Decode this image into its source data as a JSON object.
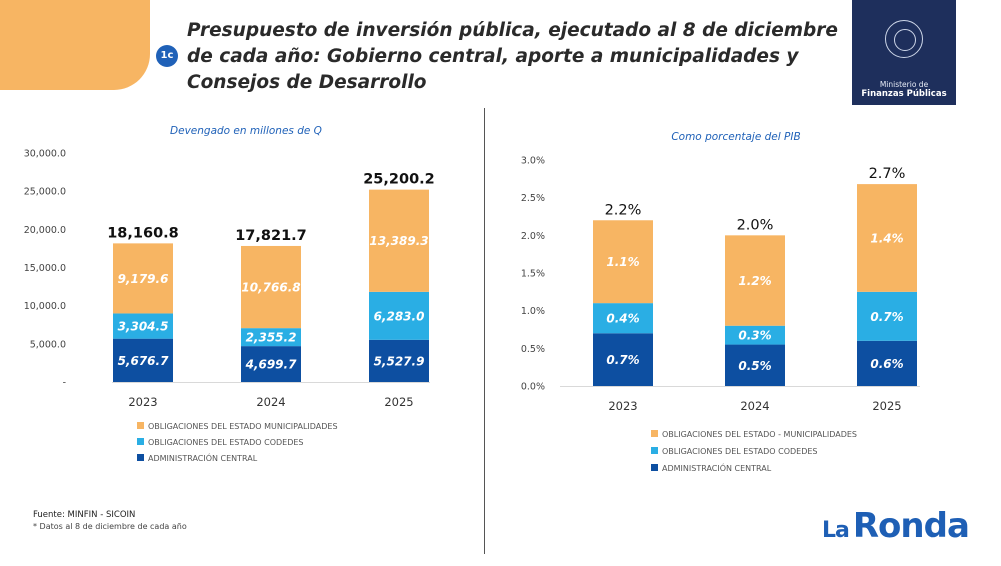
{
  "header": {
    "badge": "1c",
    "title": "Presupuesto de inversión pública, ejecutado al 8 de diciembre de cada año: Gobierno central, aporte a municipalidades y Consejos de Desarrollo"
  },
  "logo": {
    "line1": "Ministerio de",
    "line2": "Finanzas Públicas"
  },
  "footer": {
    "source": "Fuente: MINFIN - SICOIN",
    "note": "* Datos al 8 de diciembre de cada año",
    "brand_prefix": "La",
    "brand_name": "Ronda"
  },
  "colors": {
    "municipalidades": "#f7b563",
    "codedes": "#2aaee4",
    "central": "#0d4fa1",
    "corner": "#f7b563"
  },
  "chart_data": [
    {
      "type": "bar",
      "stacked": true,
      "title": "Devengado en millones de Q",
      "categories": [
        "2023",
        "2024",
        "2025"
      ],
      "ylim": [
        0,
        30000
      ],
      "yticks": [
        "-",
        "5,000.0",
        "10,000.0",
        "15,000.0",
        "20,000.0",
        "25,000.0",
        "30,000.0"
      ],
      "series": [
        {
          "name": "ADMINISTRACIÓN CENTRAL",
          "values": [
            5676.7,
            4699.7,
            5527.9
          ],
          "labels": [
            "5,676.7",
            "4,699.7",
            "5,527.9"
          ]
        },
        {
          "name": "OBLIGACIONES DEL ESTADO    CODEDES",
          "values": [
            3304.5,
            2355.2,
            6283.0
          ],
          "labels": [
            "3,304.5",
            "2,355.2",
            "6,283.0"
          ]
        },
        {
          "name": "OBLIGACIONES DEL ESTADO    MUNICIPALIDADES",
          "values": [
            9179.6,
            10766.8,
            13389.3
          ],
          "labels": [
            "9,179.6",
            "10,766.8",
            "13,389.3"
          ]
        }
      ],
      "totals": [
        "18,160.8",
        "17,821.7",
        "25,200.2"
      ]
    },
    {
      "type": "bar",
      "stacked": true,
      "title": "Como porcentaje del PIB",
      "categories": [
        "2023",
        "2024",
        "2025"
      ],
      "ylim": [
        0,
        3.0
      ],
      "yticks": [
        "0.0%",
        "0.5%",
        "1.0%",
        "1.5%",
        "2.0%",
        "2.5%",
        "3.0%"
      ],
      "series": [
        {
          "name": "ADMINISTRACIÓN CENTRAL",
          "values": [
            0.7,
            0.55,
            0.6
          ],
          "labels": [
            "0.7%",
            "0.5%",
            "0.6%"
          ]
        },
        {
          "name": "OBLIGACIONES DEL ESTADO    CODEDES",
          "values": [
            0.4,
            0.25,
            0.65
          ],
          "labels": [
            "0.4%",
            "0.3%",
            "0.7%"
          ]
        },
        {
          "name": "OBLIGACIONES DEL ESTADO - MUNICIPALIDADES",
          "values": [
            1.1,
            1.2,
            1.43
          ],
          "labels": [
            "1.1%",
            "1.2%",
            "1.4%"
          ]
        }
      ],
      "totals": [
        "2.2%",
        "2.0%",
        "2.7%"
      ]
    }
  ]
}
